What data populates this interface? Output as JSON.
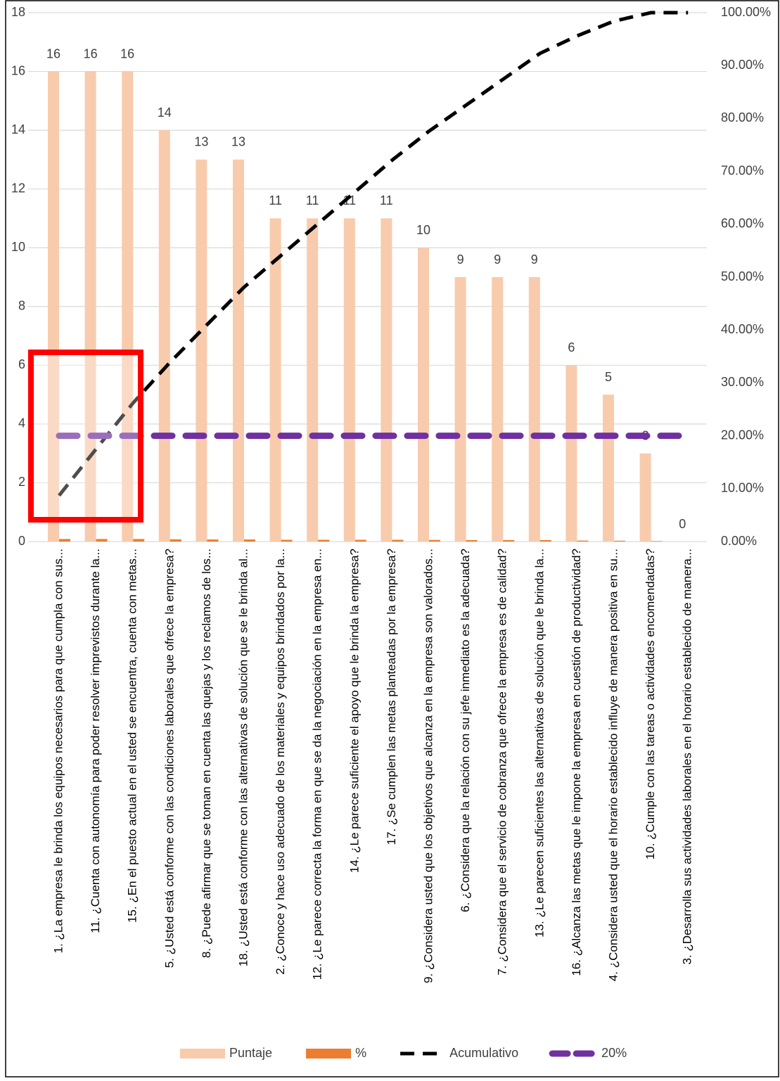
{
  "chart_data": {
    "type": "bar",
    "categories": [
      "1. ¿La empresa le brinda los equipos necesarios para que cumpla con sus...",
      "11. ¿Cuenta con autonomía para poder resolver imprevistos durante la...",
      "15. ¿En el puesto actual en el usted se encuentra, cuenta con metas...",
      "5. ¿Usted está conforme con las condiciones laborales que ofrece la empresa?",
      "8. ¿Puede afirmar que se toman en cuenta las quejas y los reclamos de los...",
      "18. ¿Usted está conforme con las alternativas de solución que se le brinda al...",
      "2. ¿Conoce y hace uso adecuado de los materiales y equipos brindados por la...",
      "12. ¿Le parece correcta la forma en que se da la negociación en la empresa en...",
      "14. ¿Le parece suficiente el apoyo que le brinda la empresa?",
      "17. ¿Se cumplen las metas planteadas por la empresa?",
      "9. ¿Considera usted que los objetivos que alcanza en la empresa son valorados...",
      "6. ¿Considera que la relación con su jefe inmediato es la adecuada?",
      "7. ¿Considera que el servicio de cobranza que ofrece la empresa es de calidad?",
      "13. ¿Le parecen suficientes las alternativas de solución que le brinda la...",
      "16. ¿Alcanza las metas que le impone la empresa en cuestión de productividad?",
      "4. ¿Considera usted que el horario establecido influye de manera positiva en su...",
      "10. ¿Cumple con las tareas o actividades encomendadas?",
      "3. ¿Desarrolla sus actividades laborales en el horario establecido de manera..."
    ],
    "series": [
      {
        "name": "Puntaje",
        "kind": "bar",
        "color": "#f8cbad",
        "data_labels": true,
        "values": [
          16,
          16,
          16,
          14,
          13,
          13,
          11,
          11,
          11,
          11,
          10,
          9,
          9,
          9,
          6,
          5,
          3,
          0
        ]
      },
      {
        "name": "%",
        "kind": "bar",
        "color": "#ed7d31",
        "values": [
          0.087,
          0.087,
          0.087,
          0.077,
          0.071,
          0.071,
          0.06,
          0.06,
          0.06,
          0.06,
          0.055,
          0.049,
          0.049,
          0.049,
          0.033,
          0.027,
          0.016,
          0
        ]
      },
      {
        "name": "Acumulativo",
        "kind": "line",
        "axis": "y2",
        "color": "#000000",
        "values": [
          8.7,
          17.5,
          26.2,
          33.9,
          41.0,
          48.1,
          54.1,
          60.1,
          66.1,
          72.1,
          77.6,
          82.5,
          87.4,
          92.3,
          95.6,
          98.4,
          100,
          100
        ]
      },
      {
        "name": "20%",
        "kind": "line",
        "axis": "y2",
        "color": "#7030a0",
        "values": [
          20,
          20,
          20,
          20,
          20,
          20,
          20,
          20,
          20,
          20,
          20,
          20,
          20,
          20,
          20,
          20,
          20,
          20
        ]
      }
    ],
    "ylim": [
      0,
      18
    ],
    "yticks": [
      0,
      2,
      4,
      6,
      8,
      10,
      12,
      14,
      16,
      18
    ],
    "y2lim": [
      0,
      100
    ],
    "y2ticks": [
      {
        "value": 0,
        "label": "0.00%"
      },
      {
        "value": 10,
        "label": "10.00%"
      },
      {
        "value": 20,
        "label": "20.00%"
      },
      {
        "value": 30,
        "label": "30.00%"
      },
      {
        "value": 40,
        "label": "40.00%"
      },
      {
        "value": 50,
        "label": "50.00%"
      },
      {
        "value": 60,
        "label": "60.00%"
      },
      {
        "value": 70,
        "label": "70.00%"
      },
      {
        "value": 80,
        "label": "80.00%"
      },
      {
        "value": 90,
        "label": "90.00%"
      },
      {
        "value": 100,
        "label": "100.00%"
      }
    ],
    "grid": true,
    "legend": "bottom"
  }
}
